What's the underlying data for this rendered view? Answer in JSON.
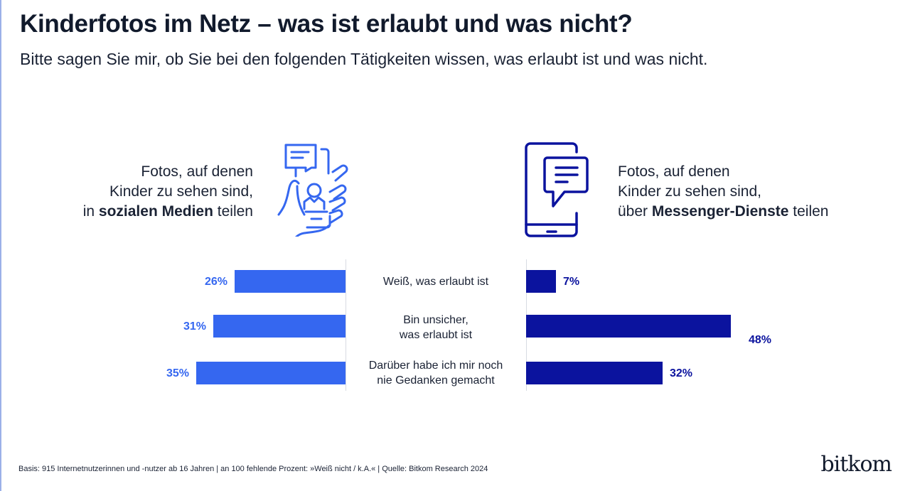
{
  "title": "Kinderfotos im Netz – was ist erlaubt und was nicht?",
  "subtitle": "Bitte sagen Sie mir, ob Sie bei den folgenden Tätigkeiten wissen, was erlaubt ist und was nicht.",
  "left_heading": {
    "line1": "Fotos, auf denen",
    "line2": "Kinder zu sehen sind,",
    "pre": "in ",
    "bold": "sozialen Medien",
    "post": " teilen"
  },
  "right_heading": {
    "line1": "Fotos, auf denen",
    "line2": "Kinder zu sehen sind,",
    "pre": "über ",
    "bold": "Messenger-Dienste",
    "post": " teilen"
  },
  "chart_data": {
    "type": "bar",
    "categories": [
      "Weiß, was erlaubt ist",
      "Bin unsicher, was erlaubt ist",
      "Darüber habe ich mir noch nie Gedanken gemacht"
    ],
    "category_lines": [
      [
        "Weiß, was erlaubt ist"
      ],
      [
        "Bin unsicher,",
        "was erlaubt ist"
      ],
      [
        "Darüber habe ich mir noch",
        "nie Gedanken gemacht"
      ]
    ],
    "series": [
      {
        "name": "Fotos in sozialen Medien teilen",
        "values": [
          26,
          31,
          35
        ],
        "labels": [
          "26%",
          "31%",
          "35%"
        ],
        "color": "#3567f0"
      },
      {
        "name": "Fotos über Messenger-Dienste teilen",
        "values": [
          7,
          48,
          32
        ],
        "labels": [
          "7%",
          "48%",
          "32%"
        ],
        "color": "#0b139e"
      }
    ],
    "unit": "%"
  },
  "footer": "Basis: 915 Internetnutzerinnen und -nutzer ab 16 Jahren | an 100 fehlende Prozent: »Weiß nicht / k.A.« | Quelle: Bitkom Research 2024",
  "brand": "bitkom"
}
